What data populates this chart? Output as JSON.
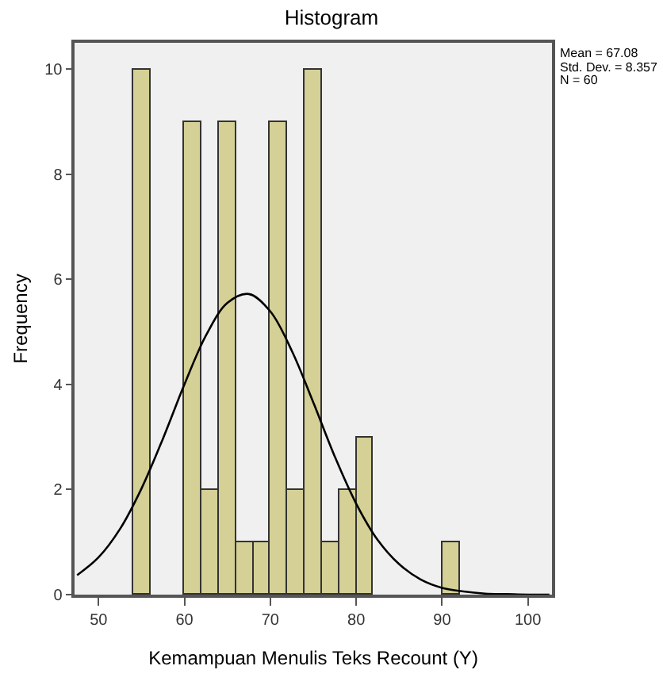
{
  "chart_data": {
    "type": "histogram",
    "title": "Histogram",
    "xlabel": "Kemampuan Menulis Teks Recount (Y)",
    "ylabel": "Frequency",
    "bins": [
      54,
      56,
      58,
      60,
      62,
      64,
      66,
      68,
      70,
      72,
      74,
      76,
      78,
      80,
      82,
      84,
      86,
      88,
      90,
      92
    ],
    "values": [
      10,
      0,
      0,
      9,
      2,
      9,
      1,
      1,
      9,
      2,
      10,
      1,
      2,
      3,
      0,
      0,
      0,
      0,
      1
    ],
    "color": "#d4d096",
    "series": [
      {
        "type": "line",
        "color": "#000000",
        "x": [
          47.5,
          50,
          52.5,
          55,
          57.5,
          60,
          62.5,
          65,
          67.5,
          70,
          72.5,
          75,
          77.5,
          80,
          82.5,
          85,
          87.5,
          90,
          92.5,
          95,
          97.5,
          100,
          102.5
        ],
        "values": [
          0.37,
          0.71,
          1.25,
          2.02,
          2.97,
          4.0,
          4.93,
          5.55,
          5.72,
          5.39,
          4.64,
          3.66,
          2.63,
          1.73,
          1.04,
          0.58,
          0.29,
          0.13,
          0.06,
          0.02,
          0.01,
          0,
          0
        ]
      }
    ],
    "annotations": [
      "Mean = 67.08",
      "Std. Dev. = 8.357",
      "N = 60"
    ],
    "xlim": [
      47.2,
      102.8
    ],
    "ylim": [
      0,
      10.5
    ],
    "xticks": [
      50,
      60,
      70,
      80,
      90,
      100
    ],
    "yticks": [
      0,
      2,
      4,
      6,
      8,
      10
    ],
    "grid": false
  }
}
